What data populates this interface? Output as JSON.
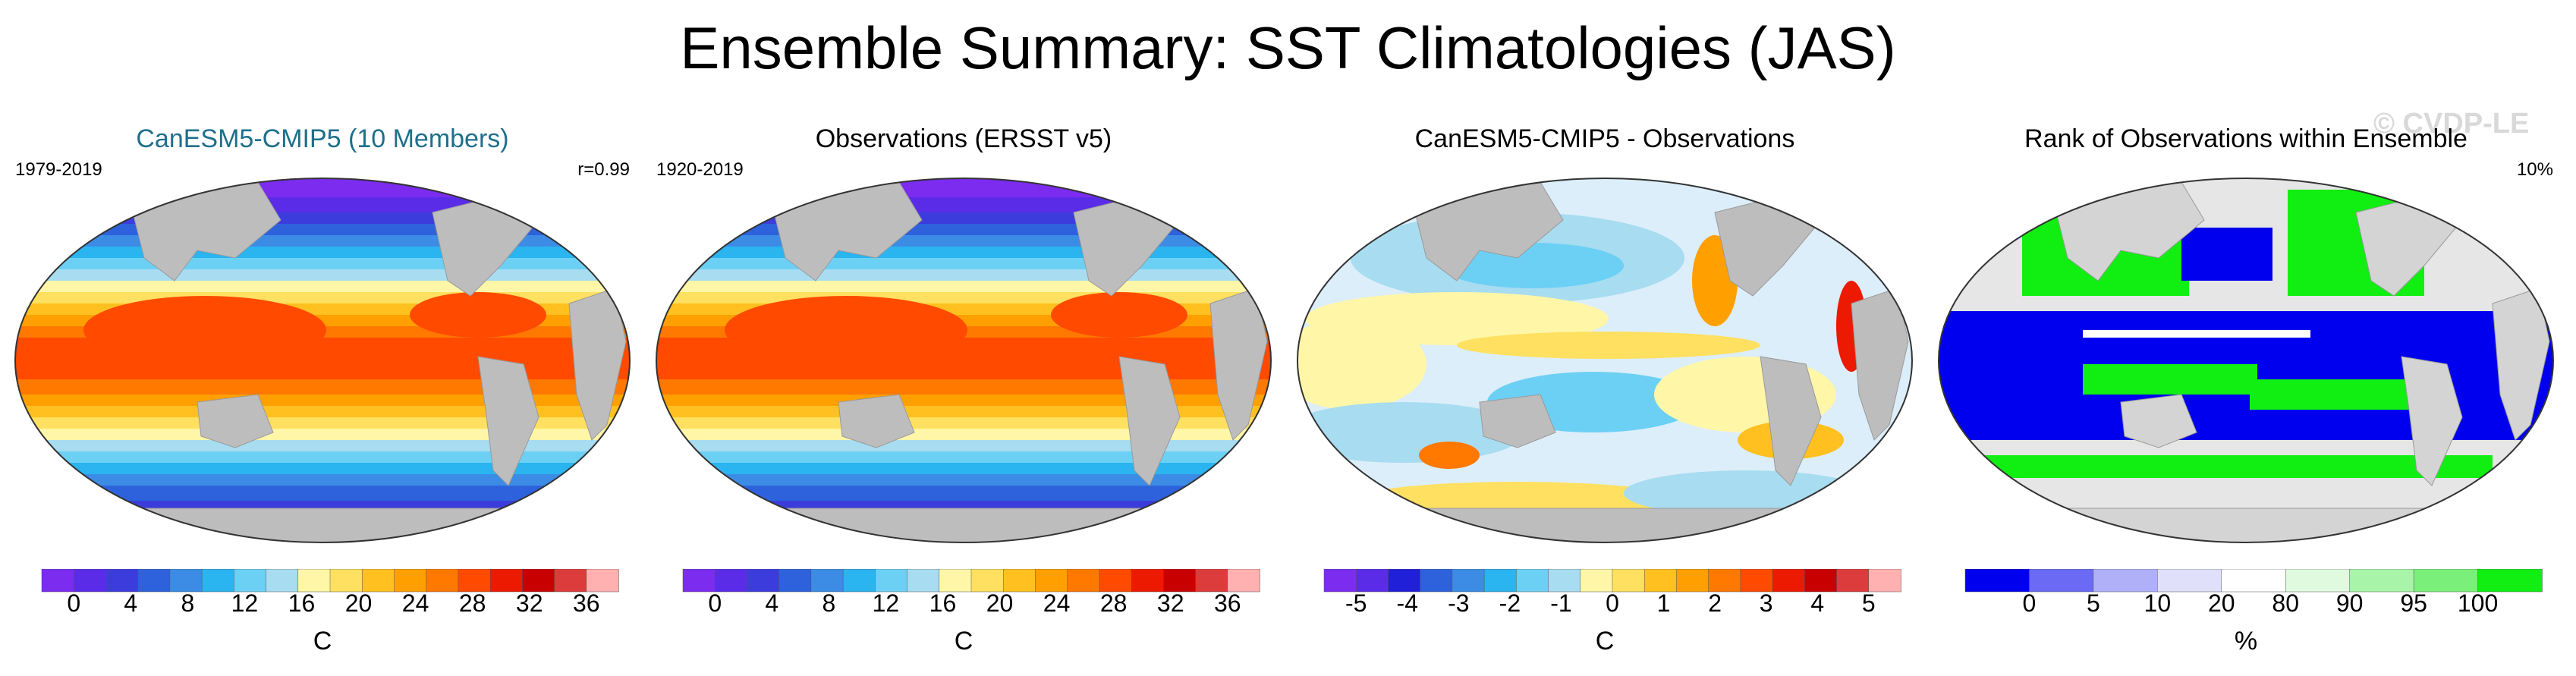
{
  "title": "Ensemble Summary: SST Climatologies (JAS)",
  "watermark": "© CVDP-LE",
  "panels": [
    {
      "title": "CanESM5-CMIP5 (10 Members)",
      "left_label": "1979-2019",
      "right_label": "r=0.99",
      "map_kind": "sst",
      "colorbar": {
        "unit": "C",
        "ticks": [
          "0",
          "4",
          "8",
          "12",
          "16",
          "20",
          "24",
          "28",
          "32",
          "36"
        ],
        "colors": [
          "#7b2cef",
          "#5a2ce8",
          "#3c3cdc",
          "#2e62dc",
          "#3c8ce6",
          "#2ab4f0",
          "#6cd0f4",
          "#a8dcf0",
          "#fff6a8",
          "#ffe060",
          "#ffc020",
          "#ffa000",
          "#ff7800",
          "#ff4a00",
          "#ec1a00",
          "#c80000",
          "#dc3c3c",
          "#ffb0b0"
        ]
      }
    },
    {
      "title": "Observations (ERSST v5)",
      "left_label": "1920-2019",
      "right_label": "",
      "map_kind": "sst",
      "colorbar": {
        "unit": "C",
        "ticks": [
          "0",
          "4",
          "8",
          "12",
          "16",
          "20",
          "24",
          "28",
          "32",
          "36"
        ],
        "colors": [
          "#7b2cef",
          "#5a2ce8",
          "#3c3cdc",
          "#2e62dc",
          "#3c8ce6",
          "#2ab4f0",
          "#6cd0f4",
          "#a8dcf0",
          "#fff6a8",
          "#ffe060",
          "#ffc020",
          "#ffa000",
          "#ff7800",
          "#ff4a00",
          "#ec1a00",
          "#c80000",
          "#dc3c3c",
          "#ffb0b0"
        ]
      }
    },
    {
      "title": "CanESM5-CMIP5 - Observations",
      "left_label": "",
      "right_label": "",
      "map_kind": "diff",
      "colorbar": {
        "unit": "C",
        "ticks": [
          "-5",
          "-4",
          "-3",
          "-2",
          "-1",
          "0",
          "1",
          "2",
          "3",
          "4",
          "5"
        ],
        "colors": [
          "#7b2cef",
          "#5a2ce8",
          "#2020d8",
          "#2e62dc",
          "#3c8ce6",
          "#2ab4f0",
          "#6cd0f4",
          "#a8dcf0",
          "#fff6a8",
          "#ffe060",
          "#ffc020",
          "#ffa000",
          "#ff7800",
          "#ff4a00",
          "#ec1a00",
          "#c80000",
          "#dc3c3c",
          "#ffb0b0"
        ]
      }
    },
    {
      "title": "Rank of Observations within Ensemble",
      "left_label": "",
      "right_label": "10%",
      "map_kind": "rank",
      "colorbar": {
        "unit": "%",
        "ticks": [
          "0",
          "5",
          "10",
          "20",
          "80",
          "90",
          "95",
          "100"
        ],
        "colors": [
          "#0000ee",
          "#6a6af5",
          "#b0b0f8",
          "#e0e0fb",
          "#ffffff",
          "#e0fae0",
          "#a8f4a8",
          "#7af07a",
          "#11ee11"
        ]
      }
    }
  ]
}
